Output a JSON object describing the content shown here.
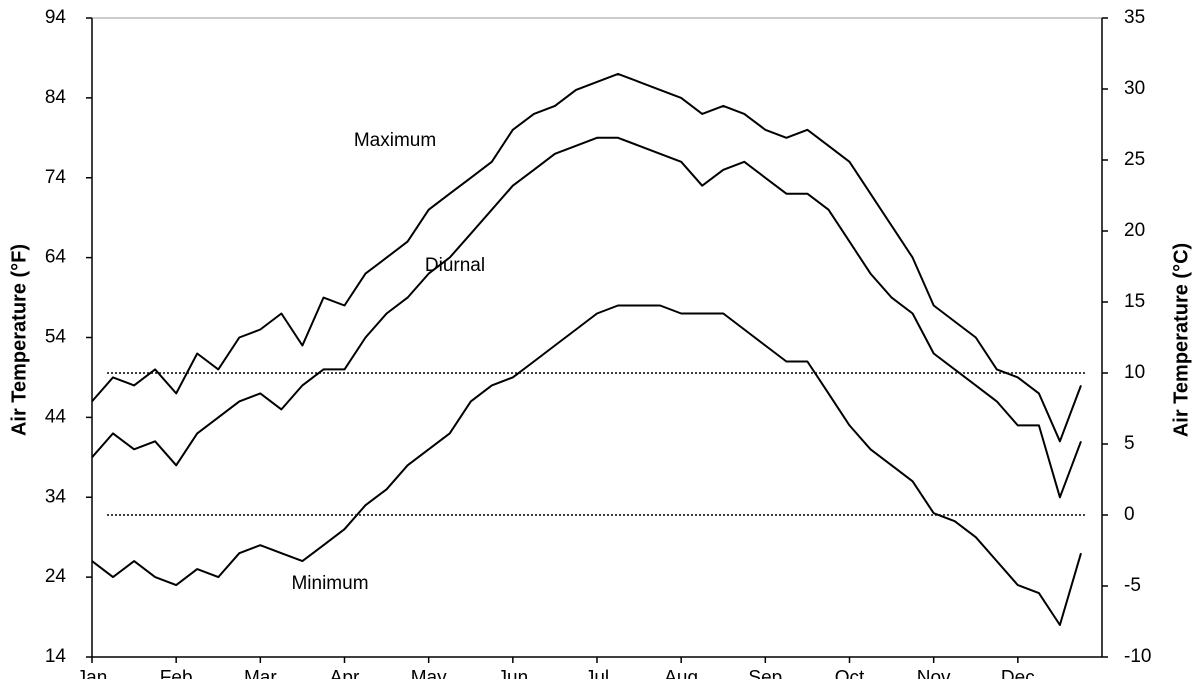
{
  "chart_data": {
    "type": "line",
    "y_label": "Air Temperature (°F)",
    "y2_label": "Air Temperature (°C)",
    "categories": [
      "Jan",
      null,
      null,
      null,
      "Feb",
      null,
      null,
      null,
      "Mar",
      null,
      null,
      null,
      "Apr",
      null,
      null,
      null,
      "May",
      null,
      null,
      null,
      "Jun",
      null,
      null,
      null,
      "Jul",
      null,
      null,
      null,
      "Aug",
      null,
      null,
      null,
      "Sep",
      null,
      null,
      null,
      "Oct",
      null,
      null,
      null,
      "Nov",
      null,
      null,
      null,
      "Dec",
      null,
      null,
      null
    ],
    "series": [
      {
        "name": "Maximum",
        "color": "#000000",
        "values": [
          46,
          49,
          48,
          50,
          47,
          52,
          50,
          54,
          55,
          57,
          53,
          59,
          58,
          62,
          64,
          66,
          70,
          72,
          74,
          76,
          80,
          82,
          83,
          85,
          86,
          87,
          86,
          85,
          84,
          82,
          83,
          82,
          80,
          79,
          80,
          78,
          76,
          72,
          68,
          64,
          58,
          56,
          54,
          50,
          49,
          47,
          41,
          48
        ]
      },
      {
        "name": "Diurnal",
        "color": "#000000",
        "values": [
          39,
          42,
          40,
          41,
          38,
          42,
          44,
          46,
          47,
          45,
          48,
          50,
          50,
          54,
          57,
          59,
          62,
          64,
          67,
          70,
          73,
          75,
          77,
          78,
          79,
          79,
          78,
          77,
          76,
          73,
          75,
          76,
          74,
          72,
          72,
          70,
          66,
          62,
          59,
          57,
          52,
          50,
          48,
          46,
          43,
          43,
          34,
          41
        ]
      },
      {
        "name": "Minimum",
        "color": "#000000",
        "values": [
          26,
          24,
          26,
          24,
          23,
          25,
          24,
          27,
          28,
          27,
          26,
          28,
          30,
          33,
          35,
          38,
          40,
          42,
          46,
          48,
          49,
          51,
          53,
          55,
          57,
          58,
          58,
          58,
          57,
          57,
          57,
          55,
          53,
          51,
          51,
          47,
          43,
          40,
          38,
          36,
          32,
          31,
          29,
          26,
          23,
          22,
          18,
          27
        ]
      }
    ],
    "ylim": [
      14,
      94
    ],
    "yticks": [
      14,
      24,
      34,
      44,
      54,
      64,
      74,
      84,
      94
    ],
    "y2lim": [
      -10,
      35
    ],
    "y2ticks": [
      -10,
      -5,
      0,
      5,
      10,
      15,
      20,
      25,
      30,
      35
    ],
    "y2_reference_lines": [
      10,
      0
    ],
    "grid": false
  }
}
